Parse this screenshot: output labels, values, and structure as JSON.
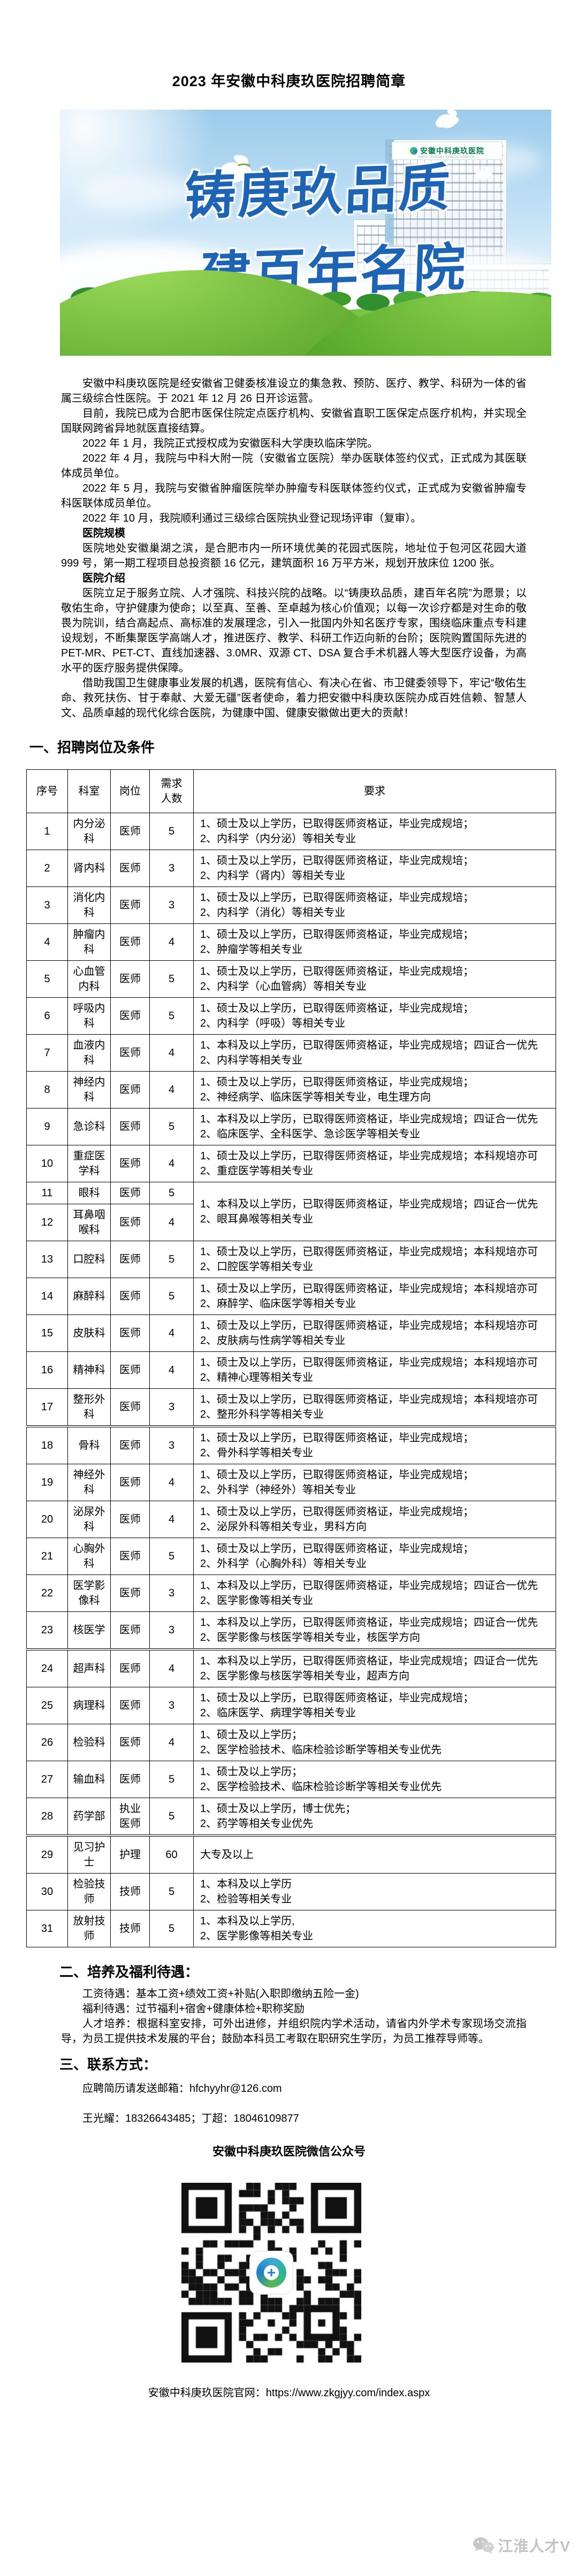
{
  "title": "2023 年安徽中科庚玖医院招聘简章",
  "banner": {
    "slogan_line1": "铸庚玖品质",
    "slogan_line2": "建百年名院",
    "building_sign": "安徽中科庚玖医院",
    "building_sign_en": "ANHUI ZHONGKE GENGJIU HOSPITAL",
    "colors": {
      "slogan_blue": "#1d64b4",
      "sky": "#9ccbeb",
      "grass": "#5fae2f"
    }
  },
  "intro_paragraphs": [
    "安徽中科庚玖医院是经安徽省卫健委核准设立的集急救、预防、医疗、教学、科研为一体的省属三级综合性医院。于 2021 年 12 月 26 日开诊运营。",
    "目前，我院已成为合肥市医保住院定点医疗机构、安徽省直职工医保定点医疗机构，并实现全国联网跨省异地就医直接结算。",
    "2022 年 1 月，我院正式授权成为安徽医科大学庚玖临床学院。",
    "2022 年 4 月，我院与中科大附一院（安徽省立医院）举办医联体签约仪式，正式成为其医联体成员单位。",
    "2022 年 5 月，我院与安徽省肿瘤医院举办肿瘤专科医联体签约仪式，正式成为安徽省肿瘤专科医联体成员单位。",
    "2022 年 10 月，我院顺利通过三级综合医院执业登记现场评审（复审）。"
  ],
  "hospital_scale": {
    "heading": "医院规模",
    "body": "医院地处安徽巢湖之滨，是合肥市内一所环境优美的花园式医院，地址位于包河区花园大道 999 号，第一期工程项目总投资额 16 亿元，建筑面积 16 万平方米，规划开放床位 1200 张。"
  },
  "hospital_intro": {
    "heading": "医院介绍",
    "paragraph1": "医院立足于服务立院、人才强院、科技兴院的战略。以“铸庚玖品质，建百年名院”为愿景；以敬佑生命，守护健康为使命；以至真、至善、至卓越为核心价值观；以每一次诊疗都是对生命的敬畏为院训，结合高起点、高标准的发展理念，引入一批国内外知名医疗专家，围绕临床重点专科建设规划，不断集聚医学高端人才，推进医疗、教学、科研工作迈向新的台阶；医院购置国际先进的 PET-MR、PET-CT、直线加速器、3.0MR、双源 CT、DSA 复合手术机器人等大型医疗设备，为高水平的医疗服务提供保障。",
    "paragraph2": "借助我国卫生健康事业发展的机遇，医院有信心、有决心在省、市卫健委领导下，牢记“敬佑生命、救死扶伤、甘于奉献、大爱无疆”医者使命，着力把安徽中科庚玖医院办成百姓信赖、智慧人文、品质卓越的现代化综合医院，为健康中国、健康安徽做出更大的贡献！"
  },
  "recruit": {
    "heading": "一、招聘岗位及条件",
    "table": {
      "headers": [
        "序号",
        "科室",
        "岗位",
        "需求人数",
        "要求"
      ],
      "rows": [
        {
          "no": "1",
          "dept": "内分泌科",
          "post": "医师",
          "count": "5",
          "req": [
            "1、硕士及以上学历，已取得医师资格证，毕业完成规培；",
            "2、内科学（内分泌）等相关专业"
          ]
        },
        {
          "no": "2",
          "dept": "肾内科",
          "post": "医师",
          "count": "3",
          "req": [
            "1、硕士及以上学历，已取得医师资格证，毕业完成规培；",
            "2、内科学（肾内）等相关专业"
          ]
        },
        {
          "no": "3",
          "dept": "消化内科",
          "post": "医师",
          "count": "3",
          "req": [
            "1、硕士及以上学历，已取得医师资格证，毕业完成规培；",
            "2、内科学（消化）等相关专业"
          ]
        },
        {
          "no": "4",
          "dept": "肿瘤内科",
          "post": "医师",
          "count": "4",
          "req": [
            "1、硕士及以上学历，已取得医师资格证，毕业完成规培；",
            "2、肿瘤学等相关专业"
          ]
        },
        {
          "no": "5",
          "dept": "心血管内科",
          "post": "医师",
          "count": "5",
          "req": [
            "1、硕士及以上学历，已取得医师资格证，毕业完成规培；",
            "2、内科学（心血管病）等相关专业"
          ]
        },
        {
          "no": "6",
          "dept": "呼吸内科",
          "post": "医师",
          "count": "5",
          "req": [
            "1、硕士及以上学历，已取得医师资格证，毕业完成规培；",
            "2、内科学（呼吸）等相关专业"
          ]
        },
        {
          "no": "7",
          "dept": "血液内科",
          "post": "医师",
          "count": "4",
          "req": [
            "1、本科及以上学历，已取得医师资格证，毕业完成规培；四证合一优先",
            "2、内科学等相关专业"
          ]
        },
        {
          "no": "8",
          "dept": "神经内科",
          "post": "医师",
          "count": "4",
          "req": [
            "1、硕士及以上学历，已取得医师资格证，毕业完成规培；",
            "2、神经病学、临床医学等相关专业，电生理方向"
          ]
        },
        {
          "no": "9",
          "dept": "急诊科",
          "post": "医师",
          "count": "5",
          "req": [
            "1、本科及以上学历，已取得医师资格证，毕业完成规培；四证合一优先",
            "2、临床医学、全科医学、急诊医学等相关专业"
          ]
        },
        {
          "no": "10",
          "dept": "重症医学科",
          "post": "医师",
          "count": "4",
          "req": [
            "1、硕士及以上学历，已取得医师资格证，毕业完成规培；本科规培亦可",
            "2、重症医学等相关专业"
          ]
        },
        {
          "no": "11",
          "dept": "眼科",
          "post": "医师",
          "count": "5",
          "req": [
            "1、本科及以上学历，已取得医师资格证，毕业完成规培；四证合一优先",
            "2、眼耳鼻喉等相关专业"
          ],
          "req_span": 2
        },
        {
          "no": "12",
          "dept": "耳鼻咽喉科",
          "post": "医师",
          "count": "4",
          "req": null
        },
        {
          "no": "13",
          "dept": "口腔科",
          "post": "医师",
          "count": "5",
          "req": [
            "1、硕士及以上学历，已取得医师资格证，毕业完成规培；本科规培亦可",
            "2、口腔医学等相关专业"
          ]
        },
        {
          "no": "14",
          "dept": "麻醉科",
          "post": "医师",
          "count": "5",
          "req": [
            "1、硕士及以上学历，已取得医师资格证，毕业完成规培；本科规培亦可",
            "2、麻醉学、临床医学等相关专业"
          ]
        },
        {
          "no": "15",
          "dept": "皮肤科",
          "post": "医师",
          "count": "4",
          "req": [
            "1、硕士及以上学历，已取得医师资格证，毕业完成规培；本科规培亦可",
            "2、皮肤病与性病学等相关专业"
          ]
        },
        {
          "no": "16",
          "dept": "精神科",
          "post": "医师",
          "count": "4",
          "req": [
            "1、硕士及以上学历，已取得医师资格证，毕业完成规培；本科规培亦可",
            "2、精神心理等相关专业"
          ]
        },
        {
          "no": "17",
          "dept": "整形外科",
          "post": "医师",
          "count": "3",
          "req": [
            "1、硕士及以上学历，已取得医师资格证，毕业完成规培；本科规培亦可",
            "2、整形外科学等相关专业"
          ]
        },
        {
          "no": "18",
          "dept": "骨科",
          "post": "医师",
          "count": "3",
          "req": [
            "1、硕士及以上学历，已取得医师资格证，毕业完成规培；",
            "2、骨外科学等相关专业"
          ],
          "pb": true
        },
        {
          "no": "19",
          "dept": "神经外科",
          "post": "医师",
          "count": "4",
          "req": [
            "1、硕士及以上学历，已取得医师资格证，毕业完成规培；",
            "2、外科学（神经外）等相关专业"
          ]
        },
        {
          "no": "20",
          "dept": "泌尿外科",
          "post": "医师",
          "count": "4",
          "req": [
            "1、硕士及以上学历，已取得医师资格证，毕业完成规培；",
            "2、泌尿外科等相关专业，男科方向"
          ]
        },
        {
          "no": "21",
          "dept": "心胸外科",
          "post": "医师",
          "count": "5",
          "req": [
            "1、硕士及以上学历，已取得医师资格证，毕业完成规培；",
            "2、外科学（心胸外科）等相关专业"
          ]
        },
        {
          "no": "22",
          "dept": "医学影像科",
          "post": "医师",
          "count": "3",
          "req": [
            "1、本科及以上学历，已取得医师资格证，毕业完成规培；四证合一优先",
            "2、医学影像等相关专业"
          ]
        },
        {
          "no": "23",
          "dept": "核医学",
          "post": "医师",
          "count": "3",
          "req": [
            "1、本科及以上学历，已取得医师资格证，毕业完成规培；四证合一优先",
            "2、医学影像与核医学等相关专业，核医学方向"
          ]
        },
        {
          "no": "24",
          "dept": "超声科",
          "post": "医师",
          "count": "4",
          "req": [
            "1、本科及以上学历，已取得医师资格证，毕业完成规培；四证合一优先",
            "2、医学影像与核医学等相关专业，超声方向"
          ],
          "pb": true
        },
        {
          "no": "25",
          "dept": "病理科",
          "post": "医师",
          "count": "3",
          "req": [
            "1、硕士及以上学历，已取得医师资格证，毕业完成规培；",
            "2、临床医学、病理学等相关专业"
          ]
        },
        {
          "no": "26",
          "dept": "检验科",
          "post": "医师",
          "count": "4",
          "req": [
            "1、硕士及以上学历；",
            "2、医学检验技术、临床检验诊断学等相关专业优先"
          ]
        },
        {
          "no": "27",
          "dept": "输血科",
          "post": "医师",
          "count": "5",
          "req": [
            "1、硕士及以上学历；",
            "2、医学检验技术、临床检验诊断学等相关专业优先"
          ]
        },
        {
          "no": "28",
          "dept": "药学部",
          "post": "执业医师",
          "count": "5",
          "req": [
            "1、硕士及以上学历，博士优先；",
            "2、药学等相关专业优先"
          ]
        },
        {
          "no": "29",
          "dept": "见习护士",
          "post": "护理",
          "count": "60",
          "req": [
            "大专及以上"
          ],
          "pb": true
        },
        {
          "no": "30",
          "dept": "检验技师",
          "post": "技师",
          "count": "5",
          "req": [
            "1、本科及以上学历",
            "2、检验等相关专业"
          ]
        },
        {
          "no": "31",
          "dept": "放射技师",
          "post": "技师",
          "count": "5",
          "req": [
            "1、本科及以上学历,",
            "2、医学影像等相关专业"
          ]
        }
      ]
    }
  },
  "welfare": {
    "heading": "二、培养及福利待遇：",
    "item1": "工资待遇：基本工资+绩效工资+补贴(入职即缴纳五险一金)",
    "item2": "福利待遇：过节福利+宿舍+健康体检+职称奖励",
    "item3": "人才培养：根据科室安排，可外出进修，并组织院内学术活动，请省内外学术专家现场交流指导，为员工提供技术发展的平台；鼓励本科员工考取在职研究生学历，为员工推荐导师等。"
  },
  "contact": {
    "heading": "三、联系方式：",
    "email_line": "应聘简历请发送邮箱：hfchyyhr@126.com",
    "phone_line": "王光耀：18326643485；丁超：18046109877",
    "wechat_title": "安徽中科庚玖医院微信公众号",
    "website_line": "安徽中科庚玖医院官网：https://www.zkgjyy.com/index.aspx"
  },
  "watermark": "江淮人才V"
}
